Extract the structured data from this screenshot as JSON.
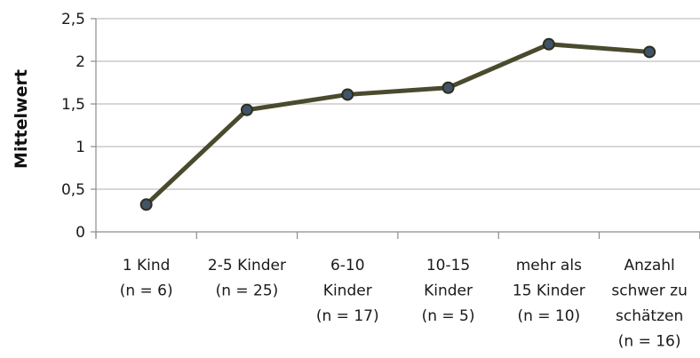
{
  "chart_data": {
    "type": "line",
    "title": "",
    "xlabel": "",
    "ylabel": "Mittelwert",
    "ylim": [
      0,
      2.5
    ],
    "yticks": [
      "0",
      "0,5",
      "1",
      "1,5",
      "2",
      "2,5"
    ],
    "grid": true,
    "categories": [
      [
        "1 Kind",
        "(n = 6)"
      ],
      [
        "2-5 Kinder",
        "(n = 25)"
      ],
      [
        "6-10",
        "Kinder",
        "(n = 17)"
      ],
      [
        "10-15",
        "Kinder",
        "(n = 5)"
      ],
      [
        "mehr als",
        "15 Kinder",
        "(n = 10)"
      ],
      [
        "Anzahl",
        "schwer zu",
        "schätzen",
        "(n = 16)"
      ]
    ],
    "series": [
      {
        "values": [
          0.32,
          1.43,
          1.61,
          1.69,
          2.2,
          2.11
        ]
      }
    ]
  },
  "colors": {
    "line": "#4a4a2e",
    "marker_fill": "#3f5468",
    "marker_stroke": "#2e2e1c",
    "grid": "#bfbfbf",
    "axis": "#8c8c8c"
  }
}
